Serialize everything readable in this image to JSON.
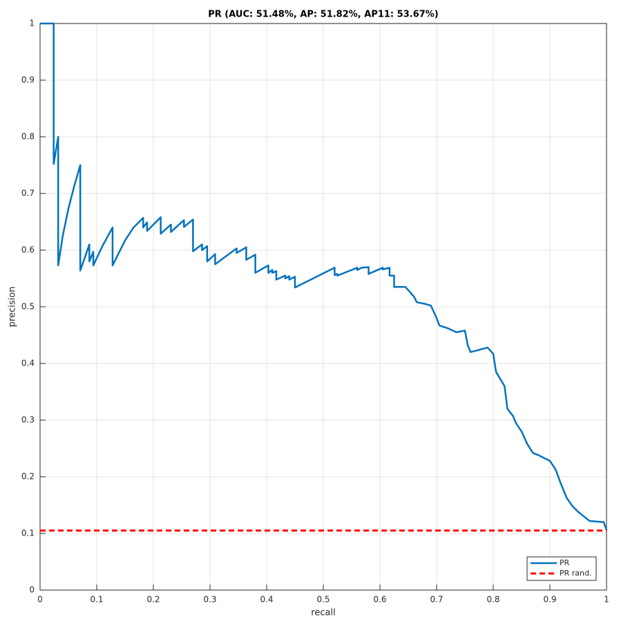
{
  "chart_data": {
    "type": "line",
    "title": "PR (AUC: 51.48%, AP: 51.82%, AP11: 53.67%)",
    "x_label": "recall",
    "y_label": "precision",
    "xlim": [
      0,
      1
    ],
    "ylim": [
      0,
      1
    ],
    "xticks": [
      0,
      0.1,
      0.2,
      0.3,
      0.4,
      0.5,
      0.6,
      0.7,
      0.8,
      0.9,
      1
    ],
    "yticks": [
      0,
      0.1,
      0.2,
      0.3,
      0.4,
      0.5,
      0.6,
      0.7,
      0.8,
      0.9,
      1
    ],
    "grid": true,
    "legend": "lower right",
    "series": [
      {
        "name": "PR",
        "color": "#0072bd",
        "dash": "solid",
        "x": [
          0,
          0.024,
          0.024,
          0.032,
          0.032,
          0.04,
          0.05,
          0.06,
          0.071,
          0.071,
          0.087,
          0.087,
          0.094,
          0.094,
          0.11,
          0.128,
          0.128,
          0.15,
          0.165,
          0.182,
          0.182,
          0.189,
          0.189,
          0.213,
          0.213,
          0.231,
          0.231,
          0.254,
          0.254,
          0.27,
          0.27,
          0.286,
          0.286,
          0.295,
          0.295,
          0.309,
          0.309,
          0.347,
          0.347,
          0.364,
          0.364,
          0.38,
          0.38,
          0.403,
          0.403,
          0.41,
          0.41,
          0.417,
          0.417,
          0.433,
          0.433,
          0.44,
          0.44,
          0.45,
          0.45,
          0.52,
          0.52,
          0.525,
          0.525,
          0.56,
          0.56,
          0.568,
          0.58,
          0.58,
          0.605,
          0.605,
          0.617,
          0.617,
          0.625,
          0.625,
          0.645,
          0.66,
          0.665,
          0.68,
          0.69,
          0.7,
          0.705,
          0.72,
          0.735,
          0.75,
          0.755,
          0.76,
          0.79,
          0.8,
          0.805,
          0.82,
          0.825,
          0.835,
          0.84,
          0.85,
          0.86,
          0.87,
          0.88,
          0.9,
          0.91,
          0.92,
          0.93,
          0.94,
          0.95,
          0.97,
          0.995,
          1
        ],
        "values": [
          1,
          1,
          0.752,
          0.8,
          0.573,
          0.625,
          0.673,
          0.712,
          0.75,
          0.564,
          0.61,
          0.58,
          0.597,
          0.573,
          0.607,
          0.64,
          0.573,
          0.617,
          0.64,
          0.657,
          0.64,
          0.649,
          0.634,
          0.658,
          0.629,
          0.645,
          0.632,
          0.653,
          0.641,
          0.654,
          0.598,
          0.61,
          0.6,
          0.607,
          0.58,
          0.593,
          0.575,
          0.603,
          0.595,
          0.605,
          0.583,
          0.592,
          0.56,
          0.573,
          0.56,
          0.565,
          0.56,
          0.563,
          0.548,
          0.555,
          0.55,
          0.554,
          0.548,
          0.553,
          0.534,
          0.569,
          0.556,
          0.558,
          0.555,
          0.569,
          0.565,
          0.569,
          0.57,
          0.558,
          0.569,
          0.566,
          0.569,
          0.555,
          0.555,
          0.535,
          0.535,
          0.518,
          0.508,
          0.505,
          0.502,
          0.48,
          0.467,
          0.462,
          0.455,
          0.458,
          0.432,
          0.42,
          0.428,
          0.417,
          0.385,
          0.36,
          0.32,
          0.307,
          0.295,
          0.28,
          0.258,
          0.242,
          0.238,
          0.228,
          0.213,
          0.186,
          0.162,
          0.148,
          0.138,
          0.122,
          0.12,
          0.106
        ]
      },
      {
        "name": "PR rand.",
        "color": "#ff0000",
        "dash": "dashed",
        "x": [
          0,
          1
        ],
        "values": [
          0.105,
          0.105
        ]
      }
    ]
  }
}
